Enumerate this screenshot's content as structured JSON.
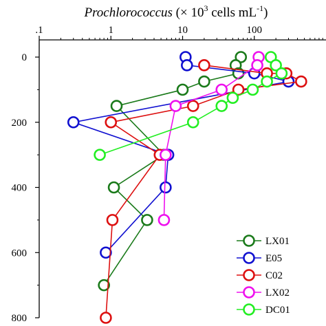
{
  "chart_data": {
    "type": "line",
    "title": {
      "italic": "Prochlorococcus",
      "plain": " (× 10",
      "sup1": "3",
      "plain2": " cells mL",
      "sup2": "-1",
      "close": ")"
    },
    "x_axis": {
      "scale": "log",
      "range": [
        0.1,
        1000
      ],
      "position": "top",
      "ticks": [
        0.1,
        1,
        10,
        100
      ],
      "tick_labels": [
        ".1",
        "1",
        "10",
        "100"
      ]
    },
    "y_axis": {
      "scale": "linear",
      "range": [
        0,
        800
      ],
      "inverted": true,
      "ticks": [
        0,
        200,
        400,
        600,
        800
      ],
      "tick_labels": [
        "0",
        "200",
        "400",
        "600",
        "800"
      ]
    },
    "grid": false,
    "legend_position": "bottom-right",
    "series": [
      {
        "name": "LX01",
        "color": "#1a7a1a",
        "points": [
          [
            65,
            0
          ],
          [
            55,
            25
          ],
          [
            60,
            50
          ],
          [
            20,
            75
          ],
          [
            10,
            100
          ],
          [
            1.2,
            150
          ],
          [
            5.5,
            300
          ],
          [
            1.1,
            400
          ],
          [
            3.2,
            500
          ],
          [
            0.8,
            700
          ]
        ]
      },
      {
        "name": "E05",
        "color": "#1010d0",
        "points": [
          [
            11,
            0
          ],
          [
            11.5,
            25
          ],
          [
            100,
            50
          ],
          [
            300,
            75
          ],
          [
            0.3,
            200
          ],
          [
            6.3,
            300
          ],
          [
            5.8,
            400
          ],
          [
            0.85,
            600
          ]
        ]
      },
      {
        "name": "C02",
        "color": "#dd1010",
        "points": [
          [
            20,
            25
          ],
          [
            150,
            50
          ],
          [
            280,
            50
          ],
          [
            450,
            75
          ],
          [
            60,
            100
          ],
          [
            14,
            150
          ],
          [
            1,
            200
          ],
          [
            4.8,
            300
          ],
          [
            1.05,
            500
          ],
          [
            0.85,
            800
          ]
        ]
      },
      {
        "name": "LX02",
        "color": "#ee10ee",
        "points": [
          [
            115,
            0
          ],
          [
            110,
            25
          ],
          [
            35,
            100
          ],
          [
            8,
            150
          ],
          [
            5.8,
            300
          ],
          [
            5.5,
            500
          ]
        ]
      },
      {
        "name": "DC01",
        "color": "#22ee22",
        "points": [
          [
            170,
            0
          ],
          [
            200,
            25
          ],
          [
            240,
            50
          ],
          [
            150,
            75
          ],
          [
            95,
            100
          ],
          [
            50,
            125
          ],
          [
            35,
            150
          ],
          [
            14,
            200
          ],
          [
            0.7,
            300
          ]
        ]
      }
    ]
  }
}
